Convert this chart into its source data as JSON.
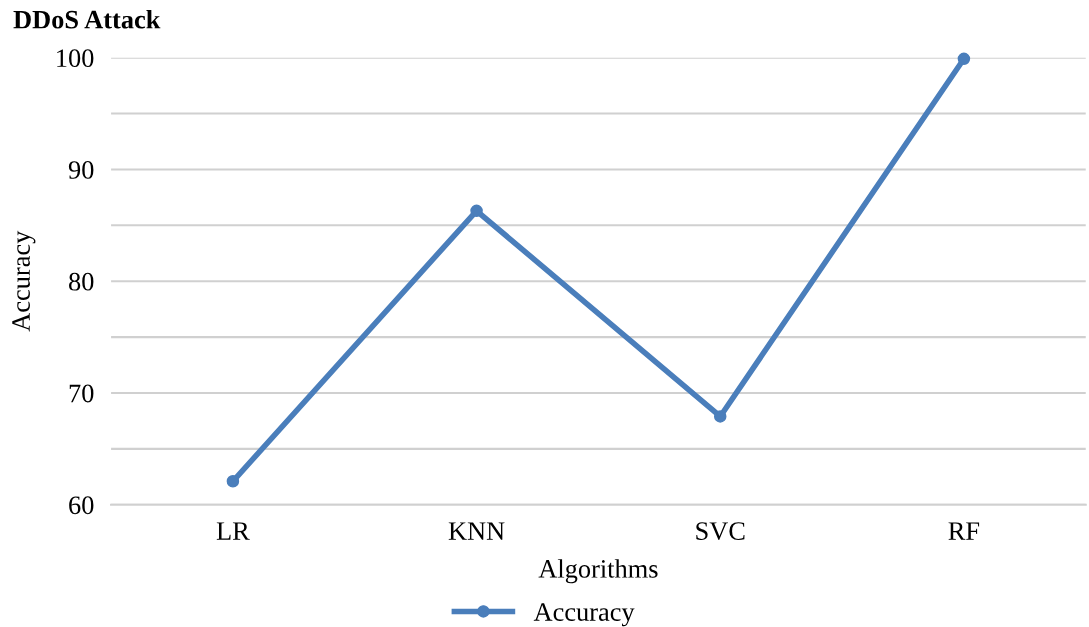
{
  "chart_data": {
    "type": "line",
    "title": "DDoS Attack",
    "xlabel": "Algorithms",
    "ylabel": "Accuracy",
    "categories": [
      "LR",
      "KNN",
      "SVC",
      "RF"
    ],
    "series": [
      {
        "name": "Accuracy",
        "color": "#4a7ebb",
        "values": [
          62.1,
          86.3,
          67.9,
          99.9
        ]
      }
    ],
    "ylim": [
      60,
      100
    ],
    "yticks": [
      60,
      {
        "value": 65,
        "label": null
      },
      70,
      {
        "value": 75,
        "label": null
      },
      80,
      {
        "value": 85,
        "label": null
      },
      90,
      {
        "value": 95,
        "label": null
      },
      100
    ],
    "grid": "y",
    "legend": "bottom",
    "marker": "circle",
    "line_style": "solid"
  }
}
